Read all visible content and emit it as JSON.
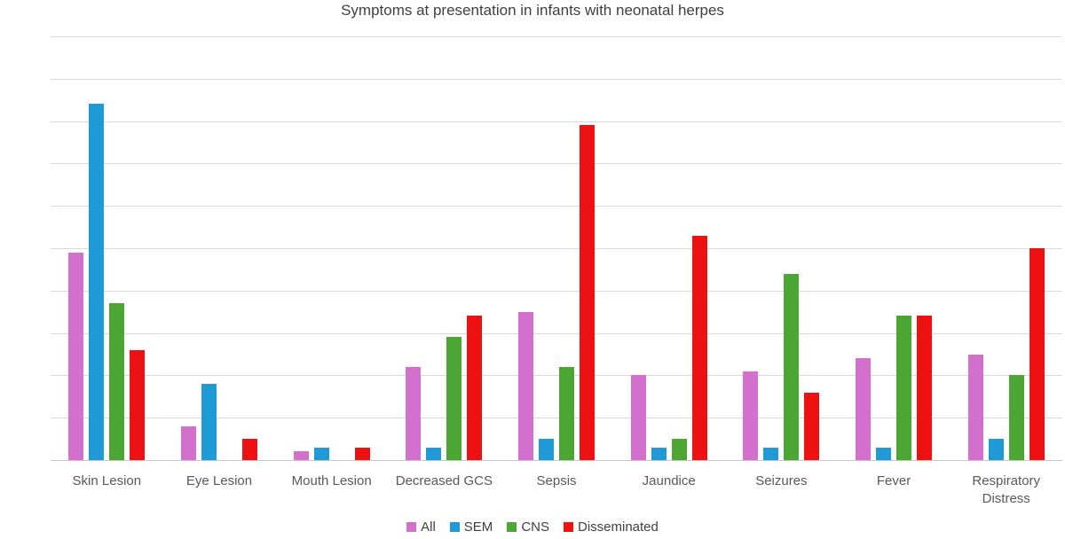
{
  "chart_data": {
    "type": "bar",
    "title": "Symptoms at presentation in infants with neonatal herpes",
    "categories": [
      "Skin Lesion",
      "Eye Lesion",
      "Mouth Lesion",
      "Decreased GCS",
      "Sepsis",
      "Jaundice",
      "Seizures",
      "Fever",
      "Respiratory Distress"
    ],
    "series": [
      {
        "name": "All",
        "color": "#D36FCD",
        "values": [
          49,
          8,
          2,
          22,
          35,
          20,
          21,
          24,
          25
        ]
      },
      {
        "name": "SEM",
        "color": "#1E9BD7",
        "values": [
          84,
          18,
          3,
          3,
          5,
          3,
          3,
          3,
          5
        ]
      },
      {
        "name": "CNS",
        "color": "#4CA633",
        "values": [
          37,
          0,
          0,
          29,
          22,
          5,
          44,
          34,
          20
        ]
      },
      {
        "name": "Disseminated",
        "color": "#EE1111",
        "values": [
          26,
          5,
          3,
          34,
          79,
          53,
          16,
          34,
          50
        ]
      }
    ],
    "ylim": [
      0,
      100
    ],
    "ytick_step": 10,
    "yticks": [
      "0%",
      "10%",
      "20%",
      "30%",
      "40%",
      "50%",
      "60%",
      "70%",
      "80%",
      "90%",
      "100%"
    ],
    "xlabel": "",
    "ylabel": "",
    "grid": "horizontal",
    "legend_position": "bottom"
  }
}
